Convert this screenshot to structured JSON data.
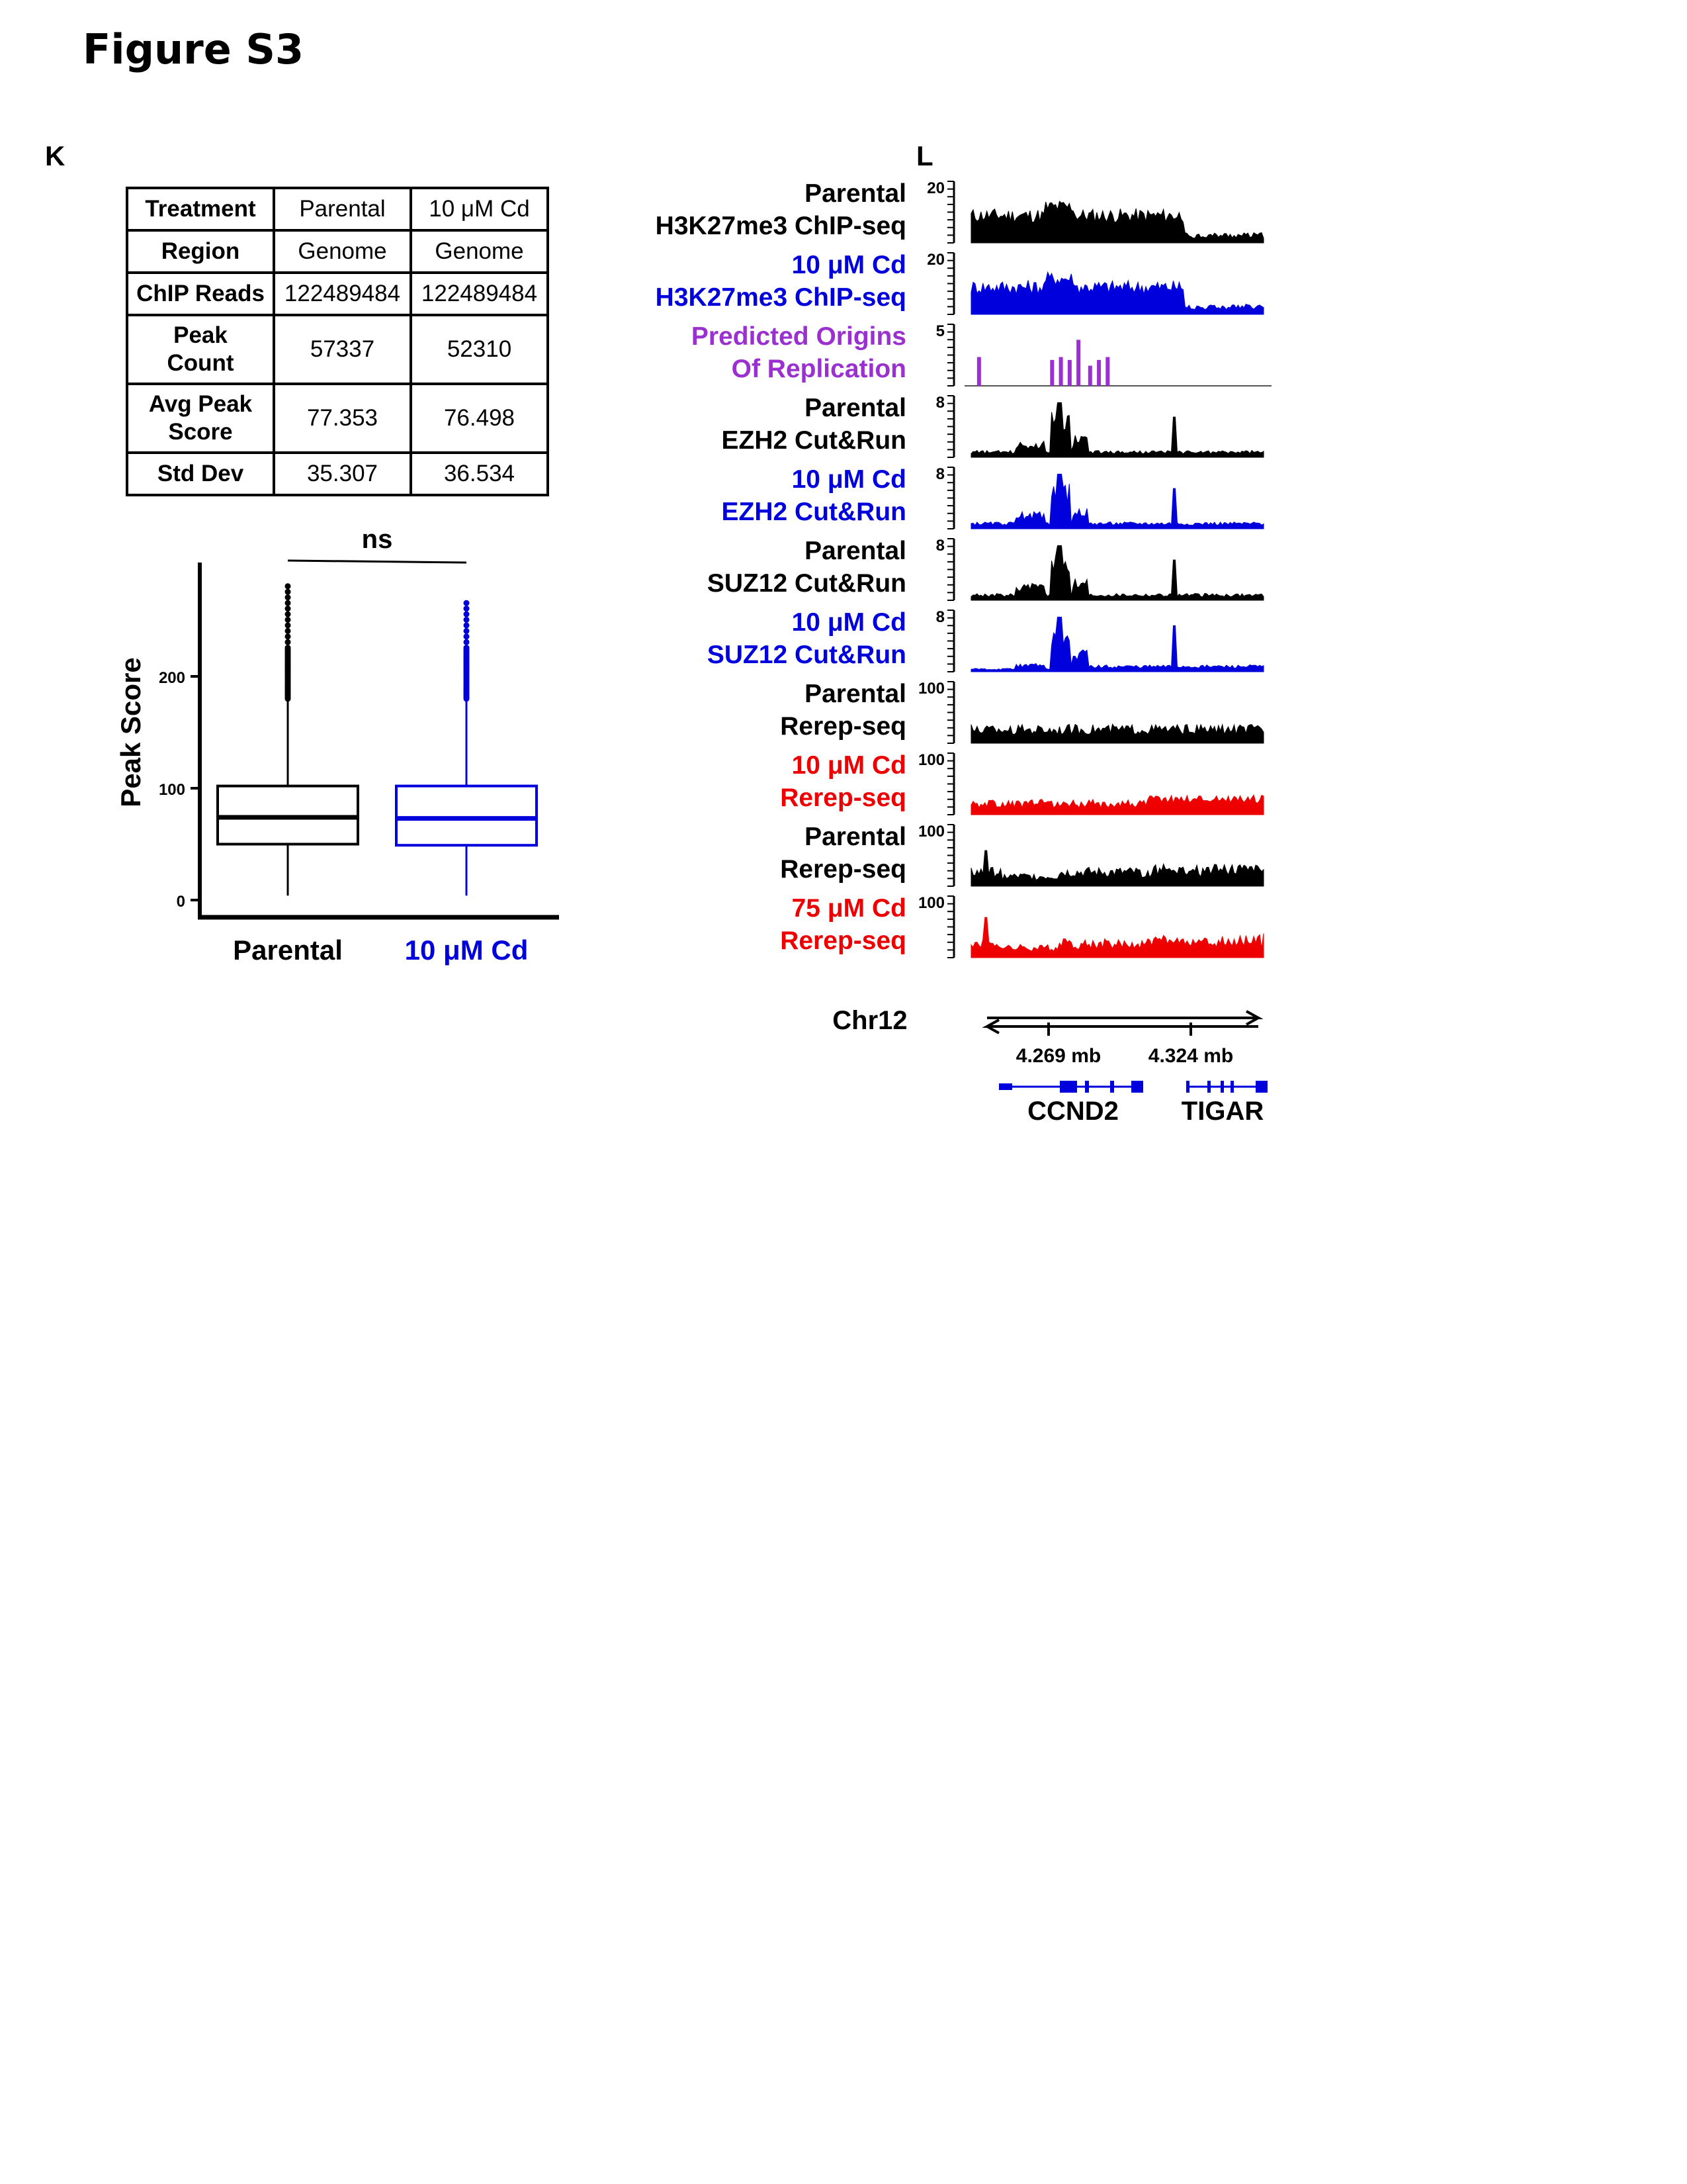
{
  "figure_title": "Figure S3",
  "panels": {
    "k": "K",
    "l": "L"
  },
  "table": {
    "rows": [
      {
        "label": "Treatment",
        "values": [
          "Parental",
          "10 μM Cd"
        ]
      },
      {
        "label": "Region",
        "values": [
          "Genome",
          "Genome"
        ]
      },
      {
        "label": "ChIP Reads",
        "values": [
          "122489484",
          "122489484"
        ]
      },
      {
        "label": "Peak\nCount",
        "values": [
          "57337",
          "52310"
        ]
      },
      {
        "label": "Avg Peak\nScore",
        "values": [
          "77.353",
          "76.498"
        ]
      },
      {
        "label": "Std Dev",
        "values": [
          "35.307",
          "36.534"
        ]
      }
    ]
  },
  "chart_data": [
    {
      "type": "box",
      "title": "",
      "xlabel": "",
      "ylabel": "Peak Score",
      "ylim": [
        0,
        300
      ],
      "yticks": [
        0,
        100,
        200
      ],
      "significance": "ns",
      "groups": [
        {
          "name": "Parental",
          "color": "#000000",
          "min": 4,
          "q1": 50,
          "median": 74,
          "q3": 102,
          "whisker_high": 180,
          "outlier_max": 283
        },
        {
          "name": "10 μM Cd",
          "color": "#0000dd",
          "min": 4,
          "q1": 49,
          "median": 73,
          "q3": 102,
          "whisker_high": 180,
          "outlier_max": 266
        }
      ]
    },
    {
      "type": "area",
      "title": "",
      "chromosome": "Chr12",
      "x_ticks": [
        "4.269 mb",
        "4.324 mb"
      ],
      "genes": [
        "CCND2",
        "TIGAR"
      ],
      "tracks": [
        {
          "line1": "Parental",
          "line2": "H3K27me3 ChIP-seq",
          "max": "20",
          "color": "#000000",
          "kind": "chip"
        },
        {
          "line1": "10 μM Cd",
          "line2": "H3K27me3 ChIP-seq",
          "max": "20",
          "color": "#0000dd",
          "kind": "chip"
        },
        {
          "line1": "Predicted Origins",
          "line2": "Of Replication",
          "max": "5",
          "color": "#9b30d0",
          "kind": "origins"
        },
        {
          "line1": "Parental",
          "line2": "EZH2 Cut&Run",
          "max": "8",
          "color": "#000000",
          "kind": "cutrun"
        },
        {
          "line1": "10 μM Cd",
          "line2": "EZH2 Cut&Run",
          "max": "8",
          "color": "#0000dd",
          "kind": "cutrun"
        },
        {
          "line1": "Parental",
          "line2": "SUZ12 Cut&Run",
          "max": "8",
          "color": "#000000",
          "kind": "cutrun"
        },
        {
          "line1": "10 μM Cd",
          "line2": "SUZ12 Cut&Run",
          "max": "8",
          "color": "#0000dd",
          "kind": "cutrun2"
        },
        {
          "line1": "Parental",
          "line2": "Rerep-seq",
          "max": "100",
          "color": "#000000",
          "kind": "rerep"
        },
        {
          "line1": "10 μM Cd",
          "line2": "Rerep-seq",
          "max": "100",
          "color": "#ee0000",
          "kind": "rerep2"
        },
        {
          "line1": "Parental",
          "line2": "Rerep-seq",
          "max": "100",
          "color": "#000000",
          "kind": "rerep3"
        },
        {
          "line1": "75 μM Cd",
          "line2": "Rerep-seq",
          "max": "100",
          "color": "#ee0000",
          "kind": "rerep4"
        }
      ]
    }
  ]
}
